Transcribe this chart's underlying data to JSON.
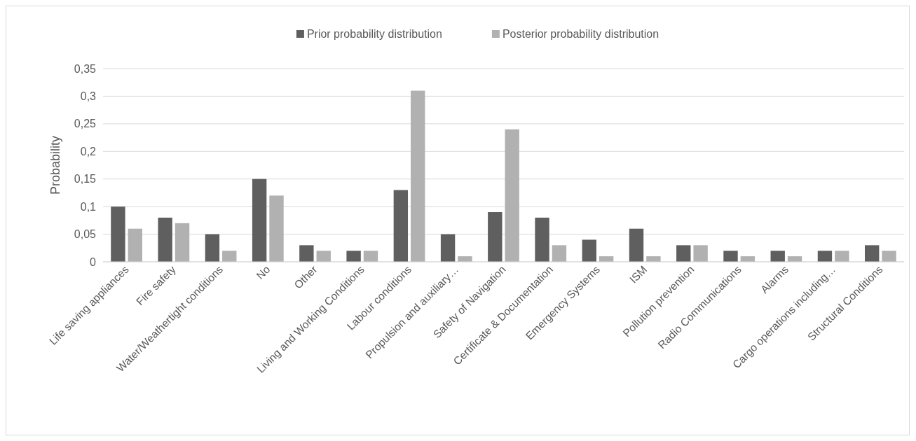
{
  "chart_data": {
    "type": "bar",
    "ylabel": "Probability",
    "categories": [
      "Life saving appliances",
      "Fire safety",
      "Water/Weathertight conditions",
      "No",
      "Other",
      "Living and Working Conditions",
      "Labour conditions",
      "Propulsion and auxiliary…",
      "Safety of Navigation",
      "Certificate & Documentation",
      "Emergency Systems",
      "ISM",
      "Pollution prevention",
      "Radio Communications",
      "Alarms",
      "Cargo operations including…",
      "Structural Conditions"
    ],
    "series": [
      {
        "name": "Prior probability distribution",
        "color": "#5f5f5f",
        "values": [
          0.1,
          0.08,
          0.05,
          0.15,
          0.03,
          0.02,
          0.13,
          0.05,
          0.09,
          0.08,
          0.04,
          0.06,
          0.03,
          0.02,
          0.02,
          0.02,
          0.03
        ]
      },
      {
        "name": "Posterior probability distribution",
        "color": "#b1b1b1",
        "values": [
          0.06,
          0.07,
          0.02,
          0.12,
          0.02,
          0.02,
          0.31,
          0.01,
          0.24,
          0.03,
          0.01,
          0.01,
          0.03,
          0.01,
          0.01,
          0.02,
          0.02
        ]
      }
    ],
    "ylim": [
      0,
      0.35
    ],
    "yticks": [
      {
        "value": 0,
        "label": "0"
      },
      {
        "value": 0.05,
        "label": "0,05"
      },
      {
        "value": 0.1,
        "label": "0,1"
      },
      {
        "value": 0.15,
        "label": "0,15"
      },
      {
        "value": 0.2,
        "label": "0,2"
      },
      {
        "value": 0.25,
        "label": "0,25"
      },
      {
        "value": 0.3,
        "label": "0,3"
      },
      {
        "value": 0.35,
        "label": "0,35"
      }
    ],
    "grid": "y",
    "legend": "top"
  }
}
